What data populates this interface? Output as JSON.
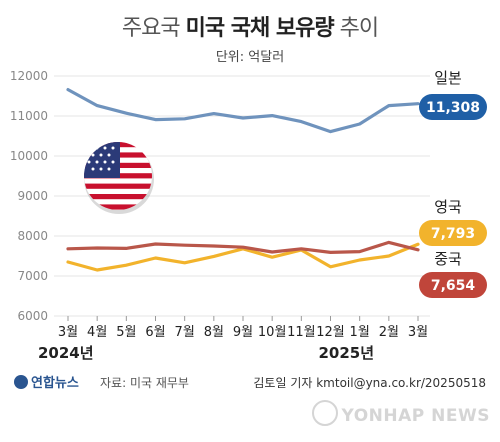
{
  "header": {
    "title_prefix": "주요국",
    "title_bold": "미국 국채 보유량",
    "title_suffix": "추이",
    "unit_label": "단위: 억달러"
  },
  "chart_data": {
    "type": "line",
    "title": "주요국 미국 국채 보유량 추이",
    "ylabel": "단위: 억달러",
    "ylim": [
      6000,
      12000
    ],
    "yticks": [
      6000,
      7000,
      8000,
      9000,
      10000,
      11000,
      12000
    ],
    "categories": [
      "3월",
      "4월",
      "5월",
      "6월",
      "7월",
      "8월",
      "9월",
      "10월",
      "11월",
      "12월",
      "1월",
      "2월",
      "3월"
    ],
    "year_labels": [
      "2024년",
      "2025년"
    ],
    "grid": "horizontal",
    "series": [
      {
        "name": "일본",
        "color": "#6f93bd",
        "badge_color": "#1f5fa6",
        "badge_label": "11,308",
        "values": [
          11660,
          11260,
          11070,
          10910,
          10930,
          11060,
          10950,
          11010,
          10860,
          10610,
          10800,
          11260,
          11308
        ]
      },
      {
        "name": "영국",
        "color": "#f2b32c",
        "badge_color": "#f2b32c",
        "badge_label": "7,793",
        "values": [
          7350,
          7150,
          7270,
          7450,
          7330,
          7490,
          7680,
          7470,
          7650,
          7230,
          7400,
          7500,
          7793
        ]
      },
      {
        "name": "중국",
        "color": "#b9574a",
        "badge_color": "#c0453a",
        "badge_label": "7,654",
        "values": [
          7680,
          7700,
          7690,
          7800,
          7770,
          7750,
          7720,
          7600,
          7680,
          7590,
          7610,
          7840,
          7654
        ]
      }
    ]
  },
  "footer": {
    "logo_text": "연합뉴스",
    "source": "자료: 미국 재무부",
    "credit": "김토일 기자 kmtoil@yna.co.kr/20250518",
    "watermark": "YONHAP NEWS"
  },
  "flag_icon": "us-flag-icon"
}
